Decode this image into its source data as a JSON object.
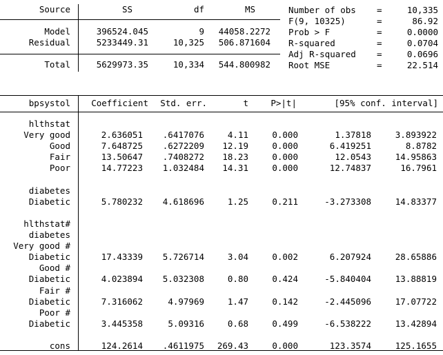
{
  "anova": {
    "headers": [
      "Source",
      "SS",
      "df",
      "MS"
    ],
    "rows": [
      {
        "source": "Model",
        "ss": "396524.045",
        "df": "9",
        "ms": "44058.2272"
      },
      {
        "source": "Residual",
        "ss": "5233449.31",
        "df": "10,325",
        "ms": "506.871604"
      }
    ],
    "total": {
      "source": "Total",
      "ss": "5629973.35",
      "df": "10,334",
      "ms": "544.800982"
    }
  },
  "stats": [
    {
      "label": "Number of obs",
      "eq": "=",
      "value": "10,335"
    },
    {
      "label": "F(9, 10325)",
      "eq": "=",
      "value": "86.92"
    },
    {
      "label": "Prob > F",
      "eq": "=",
      "value": "0.0000"
    },
    {
      "label": "R-squared",
      "eq": "=",
      "value": "0.0704"
    },
    {
      "label": "Adj R-squared",
      "eq": "=",
      "value": "0.0696"
    },
    {
      "label": "Root MSE",
      "eq": "=",
      "value": "22.514"
    }
  ],
  "coef": {
    "headers": [
      "bpsystol",
      "Coefficient",
      "Std. err.",
      "t",
      "P>|t|",
      "[95% conf. interval]"
    ],
    "rows": [
      {
        "label": "hlthstat",
        "type": "group"
      },
      {
        "label": "Very good",
        "type": "data",
        "coef": "2.636051",
        "se": ".6417076",
        "t": "4.11",
        "p": "0.000",
        "lo": "1.37818",
        "hi": "3.893922"
      },
      {
        "label": "Good",
        "type": "data",
        "coef": "7.648725",
        "se": ".6272209",
        "t": "12.19",
        "p": "0.000",
        "lo": "6.419251",
        "hi": "8.8782"
      },
      {
        "label": "Fair",
        "type": "data",
        "coef": "13.50647",
        "se": ".7408272",
        "t": "18.23",
        "p": "0.000",
        "lo": "12.0543",
        "hi": "14.95863"
      },
      {
        "label": "Poor",
        "type": "data",
        "coef": "14.77223",
        "se": "1.032484",
        "t": "14.31",
        "p": "0.000",
        "lo": "12.74837",
        "hi": "16.7961"
      },
      {
        "label": "",
        "type": "blank"
      },
      {
        "label": "diabetes",
        "type": "group"
      },
      {
        "label": "Diabetic",
        "type": "data",
        "coef": "5.780232",
        "se": "4.618696",
        "t": "1.25",
        "p": "0.211",
        "lo": "-3.273308",
        "hi": "14.83377"
      },
      {
        "label": "",
        "type": "blank"
      },
      {
        "label": "hlthstat#",
        "type": "group"
      },
      {
        "label": "diabetes",
        "type": "group"
      },
      {
        "label": "Very good #",
        "type": "sub"
      },
      {
        "label": "Diabetic",
        "type": "data",
        "coef": "17.43339",
        "se": "5.726714",
        "t": "3.04",
        "p": "0.002",
        "lo": "6.207924",
        "hi": "28.65886"
      },
      {
        "label": "Good #",
        "type": "sub"
      },
      {
        "label": "Diabetic",
        "type": "data",
        "coef": "4.023894",
        "se": "5.032308",
        "t": "0.80",
        "p": "0.424",
        "lo": "-5.840404",
        "hi": "13.88819"
      },
      {
        "label": "Fair #",
        "type": "sub"
      },
      {
        "label": "Diabetic",
        "type": "data",
        "coef": "7.316062",
        "se": "4.97969",
        "t": "1.47",
        "p": "0.142",
        "lo": "-2.445096",
        "hi": "17.07722"
      },
      {
        "label": "Poor #",
        "type": "sub"
      },
      {
        "label": "Diabetic",
        "type": "data",
        "coef": "3.445358",
        "se": "5.09316",
        "t": "0.68",
        "p": "0.499",
        "lo": "-6.538222",
        "hi": "13.42894"
      },
      {
        "label": "",
        "type": "blank"
      },
      {
        "label": "_cons",
        "type": "data",
        "coef": "124.2614",
        "se": ".4611975",
        "t": "269.43",
        "p": "0.000",
        "lo": "123.3574",
        "hi": "125.1655"
      }
    ]
  }
}
